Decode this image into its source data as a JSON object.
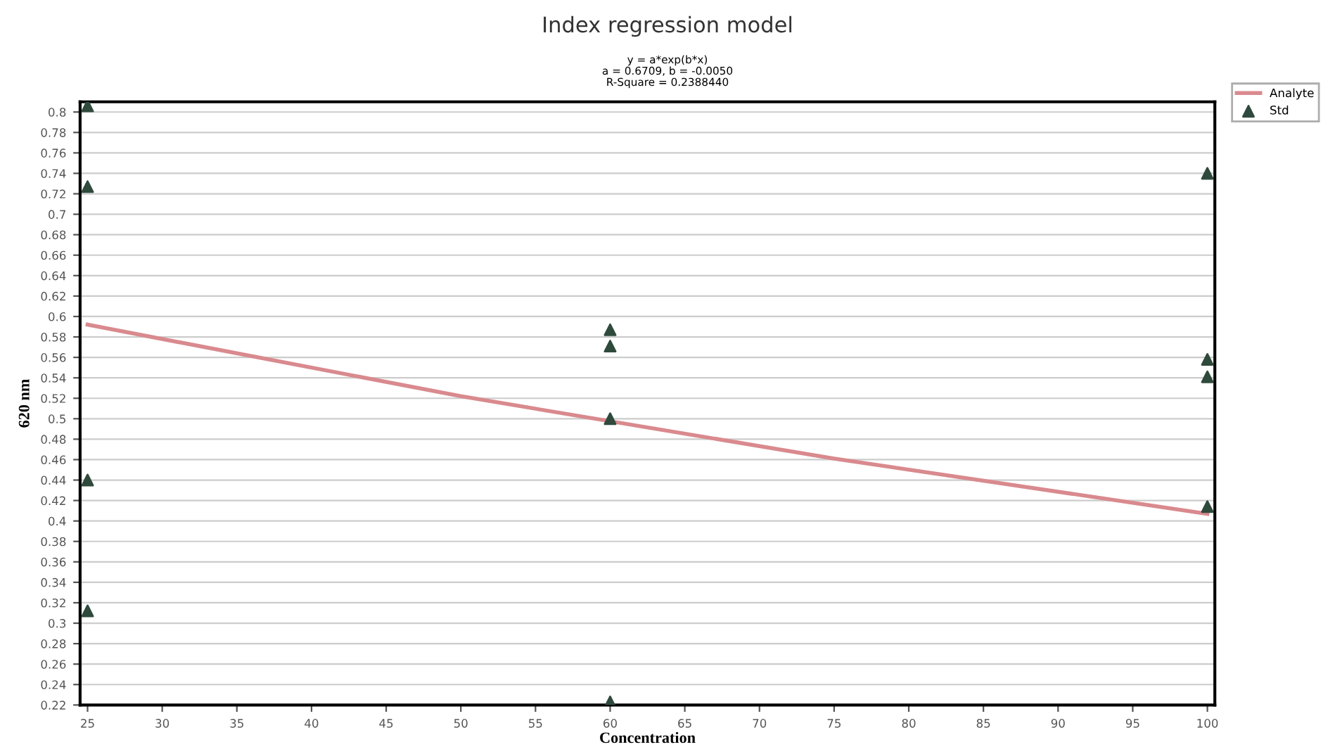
{
  "chart_data": {
    "type": "scatter",
    "title": "Index regression model",
    "subtitle": "y = a*exp(b*x)\na = 0.6709, b = -0.0050\nR-Square = 0.2388440",
    "xlabel": "Concentration",
    "ylabel": "620 nm",
    "series": [
      {
        "name": "Analyte",
        "type": "line",
        "color": "#d98a8e",
        "x": [
          25,
          50,
          75,
          100
        ],
        "values": [
          0.592,
          0.522,
          0.461,
          0.407
        ],
        "marker": "none"
      },
      {
        "name": "Std",
        "color": "#2f4a3c",
        "marker": "triangle",
        "x": [
          25,
          25,
          25,
          25,
          60,
          60,
          60,
          60,
          100,
          100,
          100,
          100
        ],
        "values": [
          0.806,
          0.727,
          0.44,
          0.312,
          0.587,
          0.571,
          0.5,
          0.223,
          0.74,
          0.558,
          0.541,
          0.414
        ]
      }
    ],
    "xlim": [
      24.5,
      100.5
    ],
    "xticks": [
      25,
      30,
      35,
      40,
      45,
      50,
      55,
      60,
      65,
      70,
      75,
      80,
      85,
      90,
      95,
      100
    ],
    "ylim": [
      0.22,
      0.81
    ],
    "yticks": [
      0.22,
      0.24,
      0.26,
      0.28,
      0.3,
      0.32,
      0.34,
      0.36,
      0.38,
      0.4,
      0.42,
      0.44,
      0.46,
      0.48,
      0.5,
      0.52,
      0.54,
      0.56,
      0.58,
      0.6,
      0.62,
      0.64,
      0.66,
      0.68,
      0.7,
      0.72,
      0.74,
      0.76,
      0.78,
      0.8
    ],
    "grid": "y",
    "legend": "top right"
  }
}
